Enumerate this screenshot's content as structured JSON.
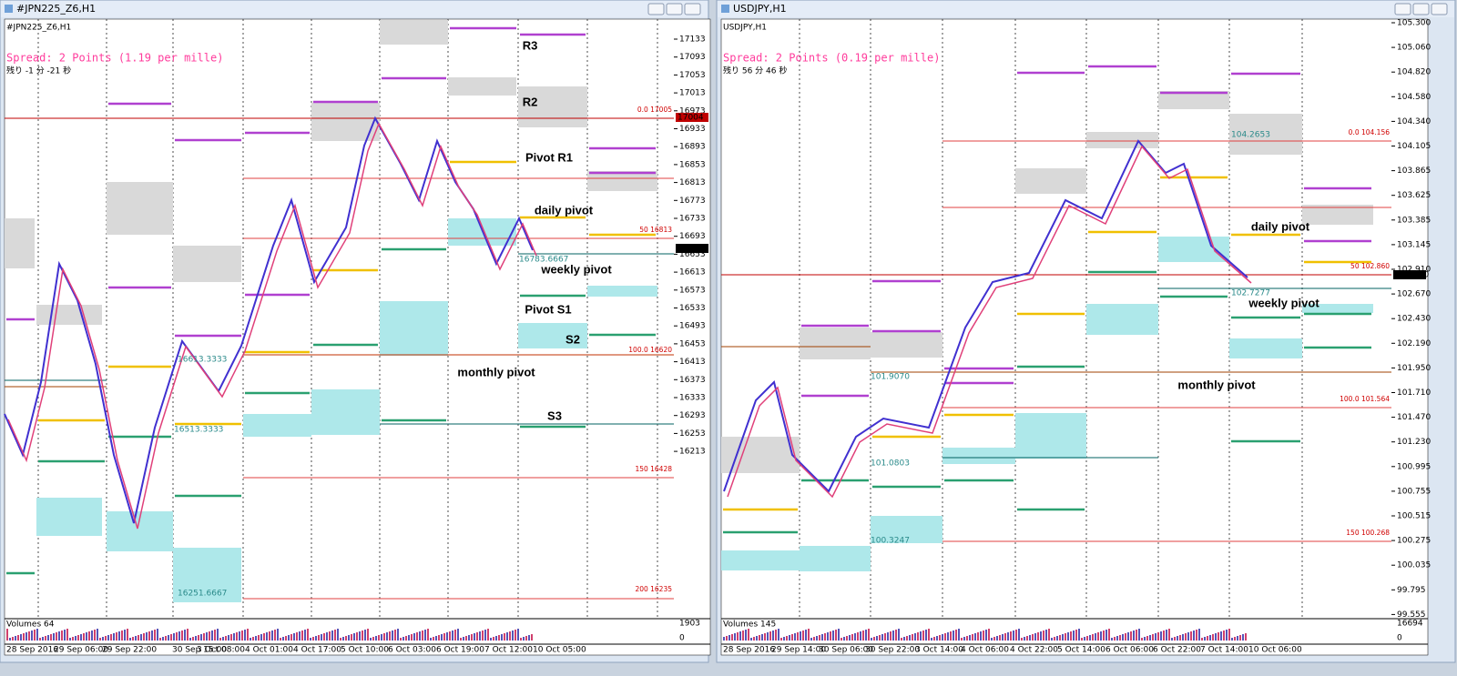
{
  "windows": [
    {
      "title": "#JPN225_Z6,H1",
      "symbol": "#JPN225_Z6,H1",
      "spread": "Spread: 2 Points (1.19 per mille)",
      "timer": "残り -1 分 -21 秒",
      "price_labels": [
        "17133",
        "17093",
        "17053",
        "17013",
        "16973",
        "16933",
        "16893",
        "16853",
        "16813",
        "16773",
        "16733",
        "16693",
        "16653",
        "16613",
        "16573",
        "16533",
        "16493",
        "16453",
        "16413",
        "16373",
        "16333",
        "16293",
        "16253",
        "16213"
      ],
      "time_labels": [
        "28 Sep 2016",
        "29 Sep 06:00",
        "29 Sep 22:00",
        "30 Sep 15:00",
        "3 Oct 08:00",
        "4 Oct 01:00",
        "4 Oct 17:00",
        "5 Oct 10:00",
        "6 Oct 03:00",
        "6 Oct 19:00",
        "7 Oct 12:00",
        "10 Oct 05:00"
      ],
      "annotations": [
        "R3",
        "R2",
        "Pivot R1",
        "daily pivot",
        "weekly pivot",
        "Pivot S1",
        "S2",
        "monthly pivot",
        "S3"
      ],
      "fib_labels": [
        "0.0 17005",
        "50 16813",
        "100.0 16620",
        "150 16428",
        "200 16235"
      ],
      "box_labels": [
        "16783.6667",
        "16613.3333",
        "16513.3333",
        "16251.6667"
      ],
      "current_price": "16795",
      "high_price": "17004",
      "volume_label": "Volumes 64",
      "volume_ticks": [
        "1903",
        "0"
      ]
    },
    {
      "title": "USDJPY,H1",
      "symbol": "USDJPY,H1",
      "spread": "Spread: 2 Points (0.19 per mille)",
      "timer": "残り 56 分 46 秒",
      "price_labels": [
        "105.300",
        "105.060",
        "104.820",
        "104.580",
        "104.340",
        "104.105",
        "103.865",
        "103.625",
        "103.385",
        "103.145",
        "102.910",
        "102.670",
        "102.430",
        "102.190",
        "101.950",
        "101.710",
        "101.470",
        "101.230",
        "100.995",
        "100.755",
        "100.515",
        "100.275",
        "100.035",
        "99.795",
        "99.555"
      ],
      "time_labels": [
        "28 Sep 2016",
        "29 Sep 14:00",
        "30 Sep 06:00",
        "30 Sep 22:00",
        "3 Oct 14:00",
        "4 Oct 06:00",
        "4 Oct 22:00",
        "5 Oct 14:00",
        "6 Oct 06:00",
        "6 Oct 22:00",
        "7 Oct 14:00",
        "10 Oct 06:00"
      ],
      "annotations": [
        "daily pivot",
        "weekly pivot",
        "monthly pivot"
      ],
      "fib_labels": [
        "0.0 104.156",
        "50 102.860",
        "100.0 101.564",
        "150 100.268"
      ],
      "box_labels": [
        "104.2653",
        "102.7277",
        "101.9070",
        "101.0803",
        "100.3247"
      ],
      "current_price": "102.850",
      "high_price": "",
      "volume_label": "Volumes 145",
      "volume_ticks": [
        "16694",
        "0"
      ]
    }
  ]
}
